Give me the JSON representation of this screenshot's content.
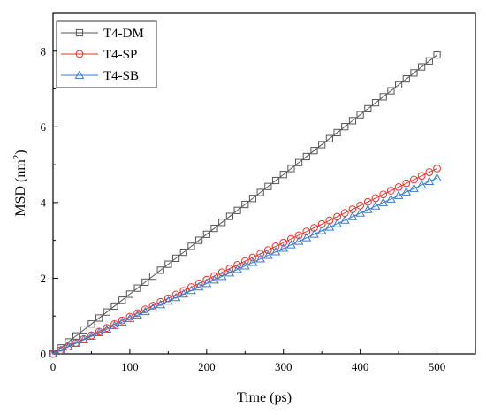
{
  "chart_data": {
    "type": "scatter",
    "title": "",
    "xlabel": "Time (ps)",
    "ylabel_main": "MSD (nm",
    "ylabel_sup": "2",
    "ylabel_close": ")",
    "xlim": [
      0,
      550
    ],
    "ylim": [
      0,
      9
    ],
    "xticks": [
      0,
      100,
      200,
      300,
      400,
      500
    ],
    "yticks": [
      0,
      2,
      4,
      6,
      8
    ],
    "x_start": 0,
    "x_end": 500,
    "x_step": 10,
    "grid": false,
    "legend_position": "top-left",
    "series": [
      {
        "name": "T4-DM",
        "color": "#555555",
        "marker": "square",
        "y_end": 7.9
      },
      {
        "name": "T4-SP",
        "color": "#e8302a",
        "marker": "circle",
        "y_end": 4.9
      },
      {
        "name": "T4-SB",
        "color": "#3a78c9",
        "marker": "triangle",
        "y_end": 4.65
      }
    ]
  }
}
